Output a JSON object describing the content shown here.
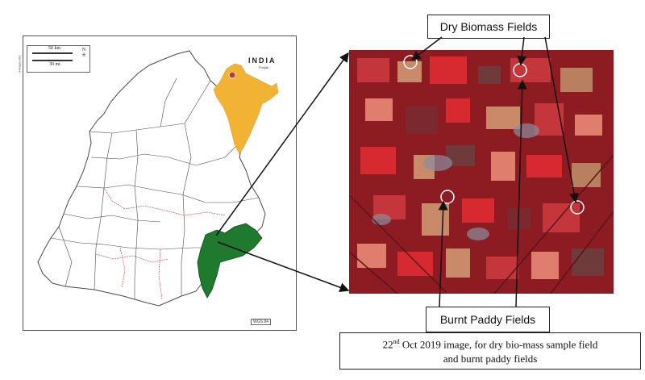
{
  "map": {
    "scale": {
      "km_label": "50 km",
      "mi_label": "30 mi"
    },
    "north_label": "N",
    "website": "d-maps.com",
    "inset_title": "INDIA",
    "inset_subtitle": "Punjab",
    "datum_label": "WGS 84",
    "colors": {
      "highlight_district": "#1f7a2e",
      "inset_country": "#f2b233",
      "inset_state": "#c0392b",
      "district_border": "#4a4a4a",
      "internal_border": "#c0304a"
    }
  },
  "satellite": {
    "colors": {
      "base": "#8c1b22",
      "bright_red": "#d62a30",
      "bare_field": "#c98a6a",
      "settlement": "#8a8d9c"
    }
  },
  "callouts": {
    "dry_biomass": "Dry Biomass Fields",
    "burnt_paddy": "Burnt Paddy Fields"
  },
  "caption": {
    "prefix": "22",
    "superscript": "nd",
    "line1_rest": " Oct 2019 image, for dry bio-mass sample field",
    "line2": "and burnt paddy fields"
  }
}
